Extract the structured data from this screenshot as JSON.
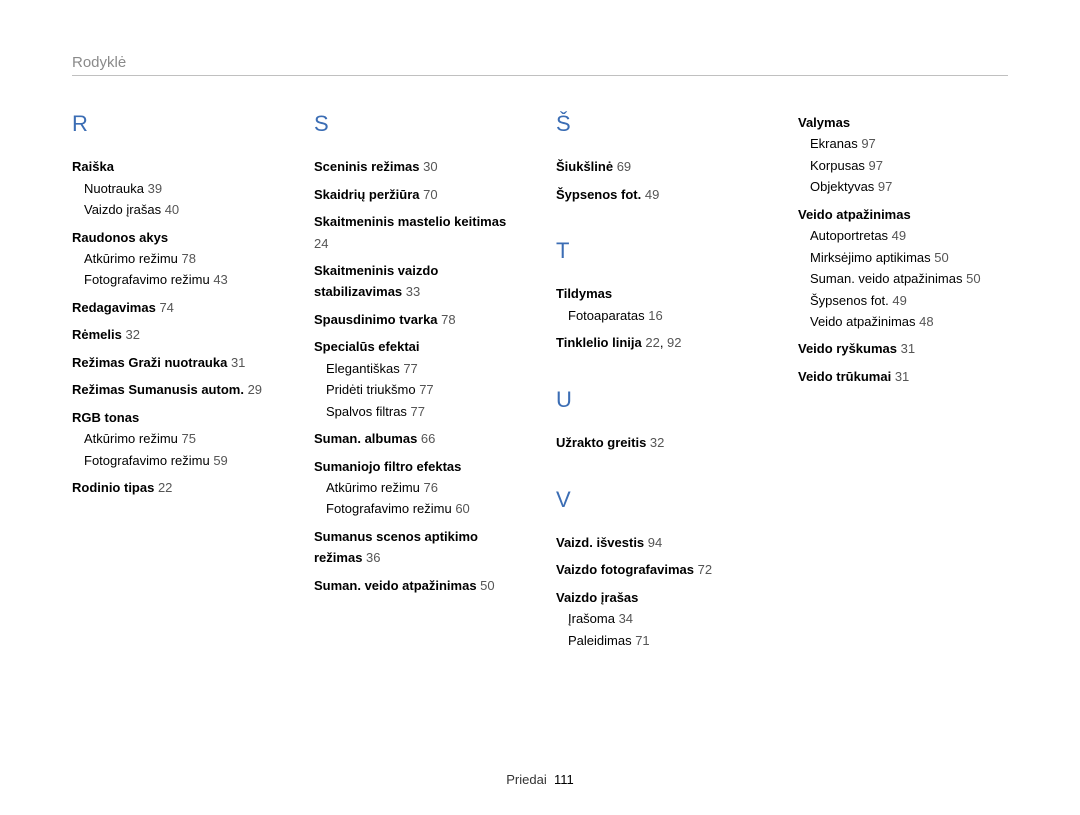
{
  "header": {
    "title": "Rodyklė"
  },
  "footer": {
    "section": "Priedai",
    "page": "111"
  },
  "columns": [
    {
      "groups": [
        {
          "letter": "R",
          "entries": [
            {
              "title": "Raiška",
              "subs": [
                {
                  "label": "Nuotrauka",
                  "pg": "39"
                },
                {
                  "label": "Vaizdo įrašas",
                  "pg": "40"
                }
              ]
            },
            {
              "title": "Raudonos akys",
              "subs": [
                {
                  "label": "Atkūrimo režimu",
                  "pg": "78"
                },
                {
                  "label": "Fotografavimo režimu",
                  "pg": "43"
                }
              ]
            },
            {
              "title": "Redagavimas",
              "pg": "74"
            },
            {
              "title": "Rėmelis",
              "pg": "32"
            },
            {
              "title": "Režimas Graži nuotrauka",
              "pg": "31"
            },
            {
              "title": "Režimas Sumanusis autom.",
              "pg": "29"
            },
            {
              "title": "RGB tonas",
              "subs": [
                {
                  "label": "Atkūrimo režimu",
                  "pg": "75"
                },
                {
                  "label": "Fotografavimo režimu",
                  "pg": "59"
                }
              ]
            },
            {
              "title": "Rodinio tipas",
              "pg": "22"
            }
          ]
        }
      ]
    },
    {
      "groups": [
        {
          "letter": "S",
          "entries": [
            {
              "title": "Sceninis režimas",
              "pg": "30"
            },
            {
              "title": "Skaidrių peržiūra",
              "pg": "70"
            },
            {
              "title": "Skaitmeninis mastelio keitimas",
              "pg": "24"
            },
            {
              "title": "Skaitmeninis vaizdo stabilizavimas",
              "pg": "33"
            },
            {
              "title": "Spausdinimo tvarka",
              "pg": "78"
            },
            {
              "title": "Specialūs efektai",
              "subs": [
                {
                  "label": "Elegantiškas",
                  "pg": "77"
                },
                {
                  "label": "Pridėti triukšmo",
                  "pg": "77"
                },
                {
                  "label": "Spalvos filtras",
                  "pg": "77"
                }
              ]
            },
            {
              "title": "Suman. albumas",
              "pg": "66"
            },
            {
              "title": "Sumaniojo filtro efektas",
              "subs": [
                {
                  "label": "Atkūrimo režimu",
                  "pg": "76"
                },
                {
                  "label": "Fotografavimo režimu",
                  "pg": "60"
                }
              ]
            },
            {
              "title": "Sumanus scenos aptikimo režimas",
              "pg": "36"
            },
            {
              "title": "Suman. veido atpažinimas",
              "pg": "50"
            }
          ]
        }
      ]
    },
    {
      "groups": [
        {
          "letter": "Š",
          "entries": [
            {
              "title": "Šiukšlinė",
              "pg": "69"
            },
            {
              "title": "Šypsenos fot.",
              "pg": "49"
            }
          ]
        },
        {
          "letter": "T",
          "entries": [
            {
              "title": "Tildymas",
              "subs": [
                {
                  "label": "Fotoaparatas",
                  "pg": "16"
                }
              ]
            },
            {
              "title": "Tinklelio linija",
              "pg": "22",
              "pg2": "92"
            }
          ]
        },
        {
          "letter": "U",
          "entries": [
            {
              "title": "Užrakto greitis",
              "pg": "32"
            }
          ]
        },
        {
          "letter": "V",
          "entries": [
            {
              "title": "Vaizd. išvestis",
              "pg": "94"
            },
            {
              "title": "Vaizdo fotografavimas",
              "pg": "72"
            },
            {
              "title": "Vaizdo įrašas",
              "subs": [
                {
                  "label": "Įrašoma",
                  "pg": "34"
                },
                {
                  "label": "Paleidimas",
                  "pg": "71"
                }
              ]
            }
          ]
        }
      ]
    },
    {
      "groups": [
        {
          "entries": [
            {
              "title": "Valymas",
              "subs": [
                {
                  "label": "Ekranas",
                  "pg": "97"
                },
                {
                  "label": "Korpusas",
                  "pg": "97"
                },
                {
                  "label": "Objektyvas",
                  "pg": "97"
                }
              ]
            },
            {
              "title": "Veido atpažinimas",
              "subs": [
                {
                  "label": "Autoportretas",
                  "pg": "49"
                },
                {
                  "label": "Mirksėjimo aptikimas",
                  "pg": "50"
                },
                {
                  "label": "Suman. veido atpažinimas",
                  "pg": "50"
                },
                {
                  "label": "Šypsenos fot.",
                  "pg": "49"
                },
                {
                  "label": "Veido atpažinimas",
                  "pg": "48"
                }
              ]
            },
            {
              "title": "Veido ryškumas",
              "pg": "31"
            },
            {
              "title": "Veido trūkumai",
              "pg": "31"
            }
          ]
        }
      ]
    }
  ]
}
